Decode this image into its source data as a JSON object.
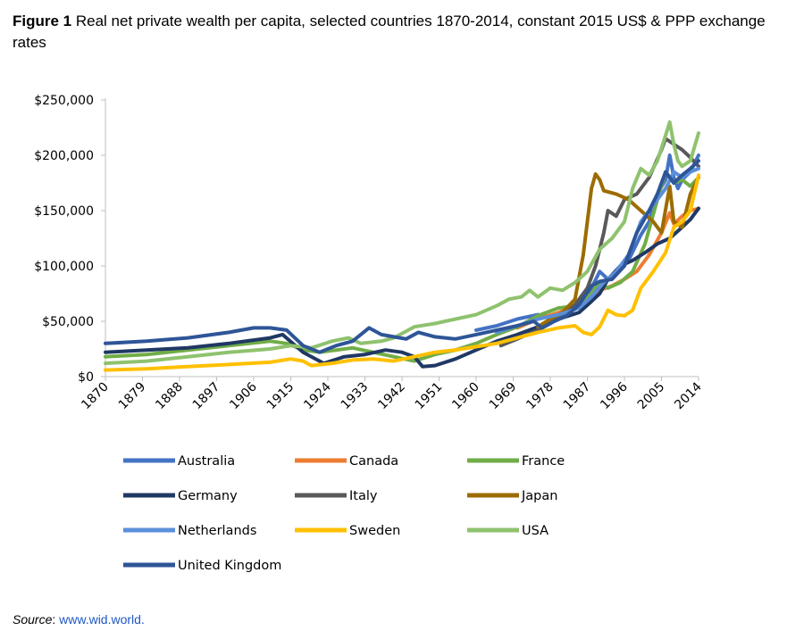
{
  "figure": {
    "label": "Figure 1",
    "caption": "Real net private wealth per capita, selected countries 1870-2014, constant 2015 US$ & PPP exchange rates",
    "source_label": "Source",
    "source_sep": ": ",
    "source_link": "www.wid.world."
  },
  "chart_data": {
    "type": "line",
    "title": "Real net private wealth per capita, selected countries 1870-2014, constant 2015 US$ & PPP exchange rates",
    "xlabel": "",
    "ylabel": "",
    "xlim": [
      1870,
      2014
    ],
    "ylim": [
      0,
      250000
    ],
    "grid": false,
    "legend_position": "bottom",
    "x_ticks": [
      1870,
      1879,
      1888,
      1897,
      1906,
      1915,
      1924,
      1933,
      1942,
      1951,
      1960,
      1969,
      1978,
      1987,
      1996,
      2005,
      2014
    ],
    "y_ticks": [
      0,
      50000,
      100000,
      150000,
      200000,
      250000
    ],
    "y_tick_labels": [
      "$0",
      "$50,000",
      "$100,000",
      "$150,000",
      "$200,000",
      "$250,000"
    ],
    "series": [
      {
        "name": "Australia",
        "color": "#4472c4",
        "points": [
          [
            1960,
            42000
          ],
          [
            1965,
            46000
          ],
          [
            1970,
            52000
          ],
          [
            1975,
            56000
          ],
          [
            1978,
            54000
          ],
          [
            1981,
            58000
          ],
          [
            1985,
            66000
          ],
          [
            1988,
            80000
          ],
          [
            1990,
            95000
          ],
          [
            1992,
            88000
          ],
          [
            1994,
            95000
          ],
          [
            1997,
            105000
          ],
          [
            2000,
            128000
          ],
          [
            2002,
            140000
          ],
          [
            2004,
            165000
          ],
          [
            2006,
            178000
          ],
          [
            2007,
            200000
          ],
          [
            2008,
            180000
          ],
          [
            2009,
            170000
          ],
          [
            2010,
            178000
          ],
          [
            2012,
            185000
          ],
          [
            2014,
            200000
          ]
        ]
      },
      {
        "name": "Canada",
        "color": "#ed7d31",
        "points": [
          [
            1970,
            44000
          ],
          [
            1975,
            52000
          ],
          [
            1980,
            58000
          ],
          [
            1985,
            65000
          ],
          [
            1988,
            72000
          ],
          [
            1990,
            78000
          ],
          [
            1993,
            82000
          ],
          [
            1996,
            88000
          ],
          [
            1999,
            95000
          ],
          [
            2002,
            110000
          ],
          [
            2005,
            130000
          ],
          [
            2007,
            148000
          ],
          [
            2008,
            138000
          ],
          [
            2010,
            145000
          ],
          [
            2012,
            150000
          ],
          [
            2014,
            152000
          ]
        ]
      },
      {
        "name": "France",
        "color": "#70ad47",
        "points": [
          [
            1870,
            18000
          ],
          [
            1880,
            20000
          ],
          [
            1890,
            24000
          ],
          [
            1900,
            28000
          ],
          [
            1910,
            32000
          ],
          [
            1914,
            30000
          ],
          [
            1918,
            24000
          ],
          [
            1922,
            22000
          ],
          [
            1930,
            26000
          ],
          [
            1935,
            22000
          ],
          [
            1940,
            18000
          ],
          [
            1945,
            14000
          ],
          [
            1950,
            20000
          ],
          [
            1955,
            24000
          ],
          [
            1960,
            30000
          ],
          [
            1965,
            38000
          ],
          [
            1970,
            45000
          ],
          [
            1975,
            55000
          ],
          [
            1980,
            62000
          ],
          [
            1985,
            64000
          ],
          [
            1988,
            75000
          ],
          [
            1990,
            85000
          ],
          [
            1992,
            80000
          ],
          [
            1995,
            85000
          ],
          [
            1998,
            95000
          ],
          [
            2001,
            120000
          ],
          [
            2004,
            160000
          ],
          [
            2006,
            185000
          ],
          [
            2008,
            175000
          ],
          [
            2010,
            178000
          ],
          [
            2012,
            172000
          ],
          [
            2014,
            180000
          ]
        ]
      },
      {
        "name": "Germany",
        "color": "#203864",
        "points": [
          [
            1870,
            22000
          ],
          [
            1880,
            24000
          ],
          [
            1890,
            26000
          ],
          [
            1900,
            30000
          ],
          [
            1910,
            35000
          ],
          [
            1913,
            38000
          ],
          [
            1918,
            22000
          ],
          [
            1923,
            12000
          ],
          [
            1928,
            18000
          ],
          [
            1933,
            20000
          ],
          [
            1938,
            24000
          ],
          [
            1942,
            22000
          ],
          [
            1945,
            18000
          ],
          [
            1947,
            9000
          ],
          [
            1950,
            10000
          ],
          [
            1955,
            16000
          ],
          [
            1960,
            24000
          ],
          [
            1965,
            32000
          ],
          [
            1970,
            38000
          ],
          [
            1975,
            45000
          ],
          [
            1980,
            52000
          ],
          [
            1985,
            58000
          ],
          [
            1988,
            68000
          ],
          [
            1990,
            75000
          ],
          [
            1992,
            88000
          ],
          [
            1995,
            100000
          ],
          [
            1998,
            105000
          ],
          [
            2001,
            112000
          ],
          [
            2004,
            120000
          ],
          [
            2007,
            125000
          ],
          [
            2010,
            135000
          ],
          [
            2012,
            142000
          ],
          [
            2014,
            152000
          ]
        ]
      },
      {
        "name": "Italy",
        "color": "#595959",
        "points": [
          [
            1966,
            28000
          ],
          [
            1970,
            34000
          ],
          [
            1975,
            42000
          ],
          [
            1978,
            48000
          ],
          [
            1981,
            56000
          ],
          [
            1984,
            65000
          ],
          [
            1987,
            80000
          ],
          [
            1989,
            100000
          ],
          [
            1991,
            130000
          ],
          [
            1992,
            150000
          ],
          [
            1994,
            145000
          ],
          [
            1996,
            160000
          ],
          [
            1999,
            165000
          ],
          [
            2002,
            180000
          ],
          [
            2005,
            205000
          ],
          [
            2006,
            215000
          ],
          [
            2008,
            210000
          ],
          [
            2010,
            205000
          ],
          [
            2012,
            198000
          ],
          [
            2014,
            190000
          ]
        ]
      },
      {
        "name": "Japan",
        "color": "#9c6c00",
        "points": [
          [
            1975,
            45000
          ],
          [
            1978,
            52000
          ],
          [
            1981,
            58000
          ],
          [
            1984,
            70000
          ],
          [
            1986,
            110000
          ],
          [
            1987,
            140000
          ],
          [
            1988,
            170000
          ],
          [
            1989,
            183000
          ],
          [
            1990,
            178000
          ],
          [
            1991,
            168000
          ],
          [
            1994,
            165000
          ],
          [
            1997,
            160000
          ],
          [
            2000,
            150000
          ],
          [
            2003,
            140000
          ],
          [
            2005,
            130000
          ],
          [
            2007,
            172000
          ],
          [
            2008,
            140000
          ],
          [
            2010,
            135000
          ],
          [
            2012,
            165000
          ],
          [
            2014,
            180000
          ]
        ]
      },
      {
        "name": "Netherlands",
        "color": "#5b8fd9",
        "points": [
          [
            1965,
            40000
          ],
          [
            1970,
            46000
          ],
          [
            1975,
            52000
          ],
          [
            1980,
            56000
          ],
          [
            1985,
            62000
          ],
          [
            1988,
            72000
          ],
          [
            1991,
            85000
          ],
          [
            1994,
            95000
          ],
          [
            1997,
            110000
          ],
          [
            2000,
            140000
          ],
          [
            2003,
            155000
          ],
          [
            2006,
            170000
          ],
          [
            2008,
            185000
          ],
          [
            2010,
            180000
          ],
          [
            2012,
            185000
          ],
          [
            2014,
            188000
          ]
        ]
      },
      {
        "name": "Sweden",
        "color": "#ffc000",
        "points": [
          [
            1870,
            6000
          ],
          [
            1880,
            7000
          ],
          [
            1890,
            9000
          ],
          [
            1900,
            11000
          ],
          [
            1910,
            13000
          ],
          [
            1915,
            16000
          ],
          [
            1918,
            14000
          ],
          [
            1920,
            10000
          ],
          [
            1925,
            12000
          ],
          [
            1930,
            15000
          ],
          [
            1935,
            16000
          ],
          [
            1940,
            14000
          ],
          [
            1945,
            18000
          ],
          [
            1950,
            22000
          ],
          [
            1955,
            24000
          ],
          [
            1960,
            27000
          ],
          [
            1965,
            30000
          ],
          [
            1970,
            35000
          ],
          [
            1975,
            40000
          ],
          [
            1980,
            44000
          ],
          [
            1984,
            46000
          ],
          [
            1986,
            40000
          ],
          [
            1988,
            38000
          ],
          [
            1990,
            45000
          ],
          [
            1992,
            60000
          ],
          [
            1994,
            56000
          ],
          [
            1996,
            55000
          ],
          [
            1998,
            60000
          ],
          [
            2000,
            80000
          ],
          [
            2003,
            95000
          ],
          [
            2006,
            112000
          ],
          [
            2008,
            135000
          ],
          [
            2010,
            140000
          ],
          [
            2012,
            150000
          ],
          [
            2014,
            182000
          ]
        ]
      },
      {
        "name": "USA",
        "color": "#8fc26e",
        "points": [
          [
            1870,
            12000
          ],
          [
            1880,
            14000
          ],
          [
            1890,
            18000
          ],
          [
            1900,
            22000
          ],
          [
            1910,
            25000
          ],
          [
            1915,
            28000
          ],
          [
            1920,
            26000
          ],
          [
            1925,
            32000
          ],
          [
            1929,
            35000
          ],
          [
            1932,
            30000
          ],
          [
            1937,
            32000
          ],
          [
            1940,
            35000
          ],
          [
            1945,
            45000
          ],
          [
            1950,
            48000
          ],
          [
            1955,
            52000
          ],
          [
            1960,
            56000
          ],
          [
            1965,
            64000
          ],
          [
            1968,
            70000
          ],
          [
            1971,
            72000
          ],
          [
            1973,
            78000
          ],
          [
            1975,
            72000
          ],
          [
            1978,
            80000
          ],
          [
            1981,
            78000
          ],
          [
            1984,
            85000
          ],
          [
            1987,
            95000
          ],
          [
            1990,
            115000
          ],
          [
            1993,
            125000
          ],
          [
            1996,
            140000
          ],
          [
            1998,
            170000
          ],
          [
            2000,
            188000
          ],
          [
            2002,
            182000
          ],
          [
            2004,
            195000
          ],
          [
            2006,
            218000
          ],
          [
            2007,
            230000
          ],
          [
            2008,
            210000
          ],
          [
            2009,
            195000
          ],
          [
            2010,
            190000
          ],
          [
            2012,
            195000
          ],
          [
            2014,
            220000
          ]
        ]
      },
      {
        "name": "United Kingdom",
        "color": "#2e5597",
        "points": [
          [
            1870,
            30000
          ],
          [
            1880,
            32000
          ],
          [
            1890,
            35000
          ],
          [
            1900,
            40000
          ],
          [
            1906,
            44000
          ],
          [
            1910,
            44000
          ],
          [
            1914,
            42000
          ],
          [
            1918,
            28000
          ],
          [
            1922,
            22000
          ],
          [
            1926,
            28000
          ],
          [
            1930,
            32000
          ],
          [
            1934,
            44000
          ],
          [
            1937,
            38000
          ],
          [
            1940,
            36000
          ],
          [
            1943,
            34000
          ],
          [
            1946,
            40000
          ],
          [
            1950,
            36000
          ],
          [
            1955,
            34000
          ],
          [
            1960,
            38000
          ],
          [
            1965,
            42000
          ],
          [
            1970,
            46000
          ],
          [
            1974,
            50000
          ],
          [
            1976,
            44000
          ],
          [
            1979,
            50000
          ],
          [
            1982,
            55000
          ],
          [
            1985,
            65000
          ],
          [
            1988,
            82000
          ],
          [
            1990,
            86000
          ],
          [
            1993,
            88000
          ],
          [
            1996,
            100000
          ],
          [
            1999,
            130000
          ],
          [
            2002,
            150000
          ],
          [
            2004,
            165000
          ],
          [
            2006,
            185000
          ],
          [
            2008,
            175000
          ],
          [
            2010,
            182000
          ],
          [
            2012,
            188000
          ],
          [
            2014,
            195000
          ]
        ]
      }
    ]
  }
}
